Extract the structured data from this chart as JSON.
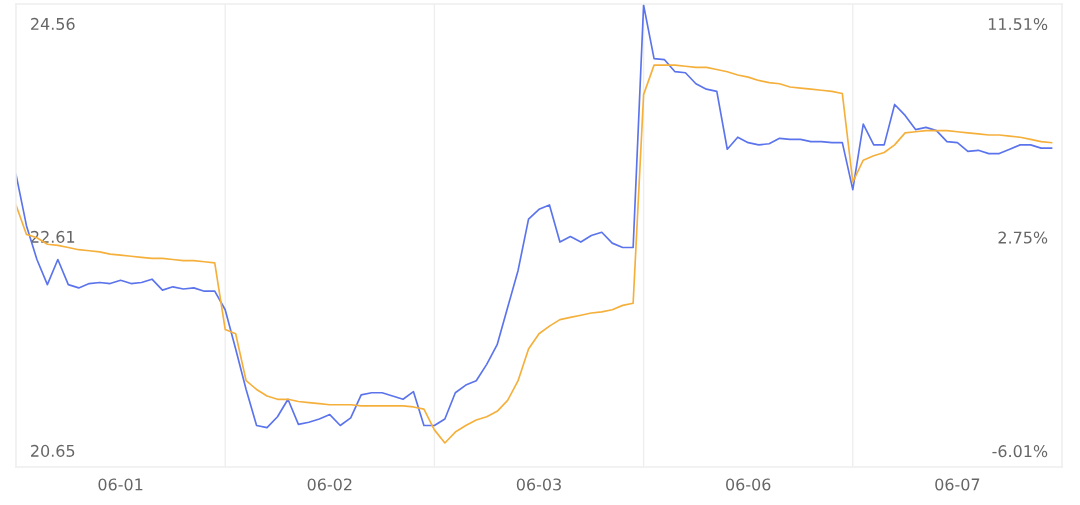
{
  "chart_data": {
    "type": "line",
    "categories": [
      null,
      null,
      null,
      null,
      null,
      null,
      null,
      null,
      null,
      null,
      "06-01",
      null,
      null,
      null,
      null,
      null,
      null,
      null,
      null,
      null,
      null,
      null,
      null,
      null,
      null,
      null,
      null,
      null,
      null,
      null,
      "06-02",
      null,
      null,
      null,
      null,
      null,
      null,
      null,
      null,
      null,
      null,
      null,
      null,
      null,
      null,
      null,
      null,
      null,
      null,
      null,
      "06-03",
      null,
      null,
      null,
      null,
      null,
      null,
      null,
      null,
      null,
      null,
      null,
      null,
      null,
      null,
      null,
      null,
      null,
      null,
      null,
      "06-06",
      null,
      null,
      null,
      null,
      null,
      null,
      null,
      null,
      null,
      null,
      null,
      null,
      null,
      null,
      null,
      null,
      null,
      null,
      null,
      "06-07",
      null,
      null,
      null,
      null,
      null,
      null,
      null,
      null,
      null
    ],
    "ylim": [
      20.5,
      24.74
    ],
    "yticks": [
      20.65,
      22.61,
      24.56
    ],
    "y2lim": [
      -6.67,
      12.32
    ],
    "y2ticks": [
      {
        "value": -6.01,
        "label": "-6.01%"
      },
      {
        "value": 2.75,
        "label": "2.75%"
      },
      {
        "value": 11.51,
        "label": "11.51%"
      }
    ],
    "grid": false,
    "legend": false,
    "marker": "none",
    "line_style": "solid",
    "series": [
      {
        "color": "#5b74ec",
        "values": [
          23.18,
          22.71,
          22.4,
          22.17,
          22.4,
          22.17,
          22.14,
          22.18,
          22.19,
          22.18,
          22.21,
          22.18,
          22.19,
          22.22,
          22.12,
          22.15,
          22.13,
          22.14,
          22.11,
          22.11,
          21.94,
          21.58,
          21.21,
          20.88,
          20.86,
          20.96,
          21.12,
          20.89,
          20.91,
          20.94,
          20.98,
          20.88,
          20.95,
          21.16,
          21.18,
          21.18,
          21.15,
          21.12,
          21.19,
          20.88,
          20.88,
          20.94,
          21.18,
          21.25,
          21.29,
          21.44,
          21.62,
          21.96,
          22.3,
          22.77,
          22.86,
          22.9,
          22.56,
          22.61,
          22.56,
          22.62,
          22.65,
          22.55,
          22.51,
          22.51,
          24.73,
          24.24,
          24.23,
          24.12,
          24.11,
          24.01,
          23.96,
          23.94,
          23.41,
          23.52,
          23.47,
          23.45,
          23.46,
          23.51,
          23.5,
          23.5,
          23.48,
          23.48,
          23.47,
          23.47,
          23.04,
          23.64,
          23.45,
          23.45,
          23.82,
          23.72,
          23.59,
          23.61,
          23.58,
          23.48,
          23.47,
          23.39,
          23.4,
          23.37,
          23.37,
          23.41,
          23.45,
          23.45,
          23.42,
          23.42
        ]
      },
      {
        "color": "#f5b03c",
        "values": [
          22.9,
          22.63,
          22.6,
          22.54,
          22.53,
          22.51,
          22.49,
          22.48,
          22.47,
          22.45,
          22.44,
          22.43,
          22.42,
          22.41,
          22.41,
          22.4,
          22.39,
          22.39,
          22.38,
          22.37,
          21.76,
          21.72,
          21.29,
          21.21,
          21.15,
          21.12,
          21.12,
          21.1,
          21.09,
          21.08,
          21.07,
          21.07,
          21.07,
          21.06,
          21.06,
          21.06,
          21.06,
          21.06,
          21.05,
          21.03,
          20.84,
          20.72,
          20.82,
          20.88,
          20.93,
          20.96,
          21.01,
          21.11,
          21.29,
          21.58,
          21.72,
          21.79,
          21.85,
          21.87,
          21.89,
          21.91,
          21.92,
          21.94,
          21.98,
          22.0,
          23.91,
          24.18,
          24.18,
          24.18,
          24.17,
          24.16,
          24.16,
          24.14,
          24.12,
          24.09,
          24.07,
          24.04,
          24.02,
          24.01,
          23.98,
          23.97,
          23.96,
          23.95,
          23.94,
          23.92,
          23.11,
          23.31,
          23.35,
          23.38,
          23.45,
          23.56,
          23.57,
          23.58,
          23.58,
          23.58,
          23.57,
          23.56,
          23.55,
          23.54,
          23.54,
          23.53,
          23.52,
          23.5,
          23.48,
          23.47
        ]
      }
    ]
  }
}
